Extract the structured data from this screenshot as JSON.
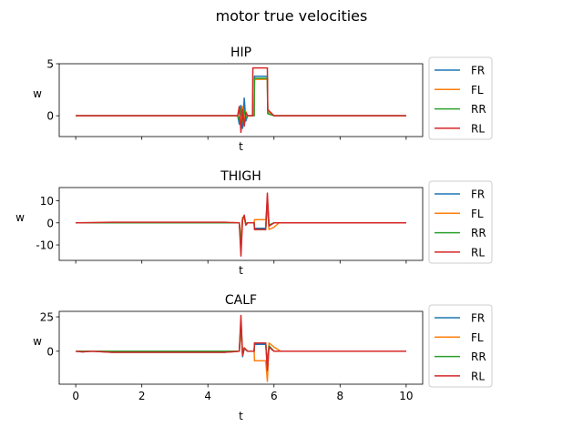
{
  "figure": {
    "title": "motor true velocities"
  },
  "colors": {
    "FR": "#1f77b4",
    "FL": "#ff7f0e",
    "RR": "#2ca02c",
    "RL": "#d62728"
  },
  "chart_data": [
    {
      "type": "line",
      "title": "HIP",
      "xlabel": "t",
      "ylabel": "w",
      "xlim": [
        -0.5,
        10.5
      ],
      "ylim": [
        -2.0,
        5.0
      ],
      "yticks": [
        0,
        5
      ],
      "xticks_labeled": false,
      "legend": "right",
      "series": [
        {
          "name": "FR",
          "x": [
            0,
            4.9,
            4.95,
            5.0,
            5.05,
            5.1,
            5.15,
            5.2,
            5.4,
            5.41,
            5.8,
            5.81,
            6.0,
            10
          ],
          "y": [
            0,
            0,
            -0.8,
            1.0,
            -1.2,
            1.7,
            -0.5,
            0,
            0,
            3.8,
            3.8,
            0.3,
            0,
            0
          ]
        },
        {
          "name": "FL",
          "x": [
            0,
            4.9,
            4.95,
            5.0,
            5.05,
            5.1,
            5.15,
            5.2,
            5.4,
            5.41,
            5.8,
            5.81,
            6.0,
            10
          ],
          "y": [
            0,
            0,
            0.6,
            -1.0,
            0.9,
            -0.6,
            0.4,
            0,
            0,
            3.5,
            3.5,
            0.4,
            0,
            0
          ]
        },
        {
          "name": "RR",
          "x": [
            0,
            4.9,
            4.95,
            5.0,
            5.05,
            5.1,
            5.15,
            5.2,
            5.4,
            5.41,
            5.8,
            5.81,
            6.0,
            10
          ],
          "y": [
            0,
            0,
            -0.4,
            0.7,
            -0.6,
            0.5,
            -0.2,
            0,
            0,
            3.6,
            3.6,
            0.2,
            0,
            0
          ]
        },
        {
          "name": "RL",
          "x": [
            0,
            4.9,
            4.95,
            5.0,
            5.05,
            5.1,
            5.15,
            5.2,
            5.35,
            5.36,
            5.8,
            5.81,
            6.0,
            10
          ],
          "y": [
            0,
            0,
            0.9,
            -1.6,
            0.6,
            -1.0,
            0.3,
            0,
            0,
            4.6,
            4.6,
            0.6,
            0,
            0
          ]
        }
      ]
    },
    {
      "type": "line",
      "title": "THIGH",
      "xlabel": "t",
      "ylabel": "w",
      "xlim": [
        -0.5,
        10.5
      ],
      "ylim": [
        -17.0,
        16.0
      ],
      "yticks": [
        -10,
        0,
        10
      ],
      "xticks_labeled": false,
      "legend": "right",
      "series": [
        {
          "name": "FR",
          "x": [
            0,
            4.95,
            5.0,
            5.05,
            5.1,
            5.15,
            5.2,
            5.4,
            5.41,
            5.75,
            5.8,
            5.85,
            6.0,
            10
          ],
          "y": [
            0,
            0,
            -9.0,
            2.0,
            3.0,
            -1.0,
            0,
            0,
            -2.5,
            -2.5,
            10.0,
            -1.0,
            0,
            0
          ]
        },
        {
          "name": "FL",
          "x": [
            0,
            4.95,
            5.0,
            5.05,
            5.1,
            5.15,
            5.2,
            5.4,
            5.41,
            5.75,
            5.8,
            5.85,
            6.0,
            6.15,
            10
          ],
          "y": [
            0,
            0,
            -8.0,
            2.5,
            2.0,
            -1.0,
            0,
            0,
            1.5,
            1.5,
            9.0,
            -3.0,
            -2.0,
            0,
            0
          ]
        },
        {
          "name": "RR",
          "x": [
            0,
            4.95,
            5.0,
            5.05,
            5.1,
            5.15,
            5.2,
            5.4,
            5.41,
            5.75,
            5.8,
            5.85,
            6.0,
            10
          ],
          "y": [
            0,
            0,
            -10.0,
            2.0,
            3.0,
            -0.5,
            0,
            0,
            -3.0,
            -3.0,
            11.0,
            -1.0,
            0,
            0
          ]
        },
        {
          "name": "RL",
          "x": [
            0,
            1.1,
            4.5,
            4.95,
            5.0,
            5.05,
            5.1,
            5.15,
            5.2,
            5.4,
            5.41,
            5.75,
            5.8,
            5.85,
            6.0,
            10
          ],
          "y": [
            0,
            0.3,
            0.3,
            0,
            -15.0,
            1.5,
            3.5,
            -1.0,
            0,
            0,
            -3.0,
            -3.0,
            13.5,
            -1.5,
            0,
            0
          ]
        }
      ]
    },
    {
      "type": "line",
      "title": "CALF",
      "xlabel": "t",
      "ylabel": "w",
      "xlim": [
        -0.5,
        10.5
      ],
      "ylim": [
        -24.0,
        29.0
      ],
      "yticks": [
        0,
        25
      ],
      "xticks": [
        0,
        2,
        4,
        6,
        8,
        10
      ],
      "xticks_labeled": true,
      "legend": "right",
      "series": [
        {
          "name": "FR",
          "x": [
            0,
            0.2,
            0.5,
            1.1,
            4.5,
            4.95,
            5.0,
            5.05,
            5.1,
            5.2,
            5.4,
            5.41,
            5.75,
            5.8,
            5.85,
            6.0,
            10
          ],
          "y": [
            0,
            -0.5,
            0,
            -0.8,
            -0.8,
            0,
            20.0,
            -4.0,
            2.0,
            0,
            0,
            5.0,
            5.0,
            -8.0,
            3.0,
            0,
            0
          ]
        },
        {
          "name": "FL",
          "x": [
            0,
            4.95,
            5.0,
            5.05,
            5.1,
            5.2,
            5.4,
            5.41,
            5.75,
            5.8,
            5.85,
            6.0,
            6.2,
            10
          ],
          "y": [
            0,
            0,
            18.0,
            -3.0,
            2.0,
            0,
            0,
            -7.0,
            -7.0,
            -22.0,
            6.0,
            3.0,
            0,
            0
          ]
        },
        {
          "name": "RR",
          "x": [
            0,
            4.95,
            5.0,
            5.05,
            5.1,
            5.2,
            5.4,
            5.41,
            5.75,
            5.8,
            5.85,
            6.0,
            10
          ],
          "y": [
            0,
            0,
            22.0,
            -3.0,
            2.0,
            0,
            0,
            6.0,
            6.0,
            -10.0,
            4.0,
            0,
            0
          ]
        },
        {
          "name": "RL",
          "x": [
            0,
            0.2,
            0.5,
            1.1,
            4.5,
            4.95,
            5.0,
            5.05,
            5.1,
            5.2,
            5.4,
            5.41,
            5.75,
            5.8,
            5.85,
            6.0,
            10
          ],
          "y": [
            0,
            -0.5,
            0,
            -0.8,
            -0.8,
            0,
            26.0,
            -3.0,
            2.5,
            0,
            0,
            6.0,
            6.0,
            -14.0,
            3.0,
            0,
            0
          ]
        }
      ]
    }
  ]
}
